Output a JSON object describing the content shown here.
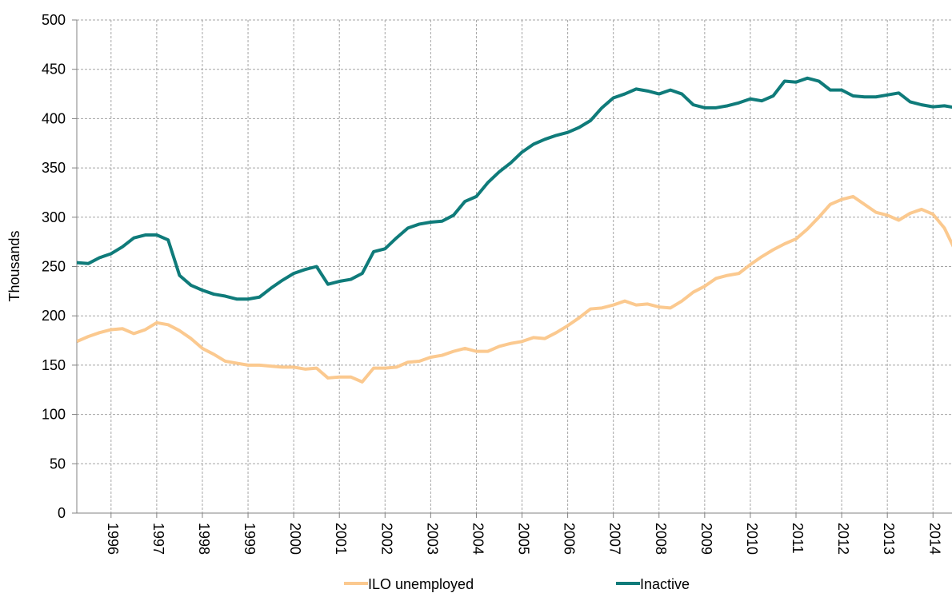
{
  "chart_data": {
    "type": "line",
    "y_label": "Thousands",
    "categories": [
      null,
      null,
      null,
      "1996",
      null,
      null,
      null,
      "1997",
      null,
      null,
      null,
      "1998",
      null,
      null,
      null,
      "1999",
      null,
      null,
      null,
      "2000",
      null,
      null,
      null,
      "2001",
      null,
      null,
      null,
      "2002",
      null,
      null,
      null,
      "2003",
      null,
      null,
      null,
      "2004",
      null,
      null,
      null,
      "2005",
      null,
      null,
      null,
      "2006",
      null,
      null,
      null,
      "2007",
      null,
      null,
      null,
      "2008",
      null,
      null,
      null,
      "2009",
      null,
      null,
      null,
      "2010",
      null,
      null,
      null,
      "2011",
      null,
      null,
      null,
      "2012",
      null,
      null,
      null,
      "2013",
      null,
      null,
      null,
      "2014",
      null,
      null
    ],
    "series": [
      {
        "name": "ILO unemployed",
        "color": "#fbc98f",
        "values": [
          174,
          179,
          183,
          186,
          187,
          182,
          186,
          193,
          191,
          185,
          177,
          167,
          161,
          154,
          152,
          150,
          150,
          149,
          148,
          148,
          146,
          147,
          137,
          138,
          138,
          133,
          147,
          147,
          148,
          153,
          154,
          158,
          160,
          164,
          167,
          164,
          164,
          169,
          172,
          174,
          178,
          177,
          183,
          190,
          198,
          207,
          208,
          211,
          215,
          211,
          212,
          209,
          208,
          215,
          224,
          230,
          238,
          241,
          243,
          252,
          260,
          267,
          273,
          278,
          288,
          300,
          313,
          318,
          321,
          313,
          305,
          302,
          297,
          304,
          308,
          303,
          289,
          265
        ]
      },
      {
        "name": "Inactive",
        "color": "#0f7b7a",
        "values": [
          254,
          253,
          259,
          263,
          270,
          279,
          282,
          282,
          277,
          241,
          231,
          226,
          222,
          220,
          217,
          217,
          219,
          228,
          236,
          243,
          247,
          250,
          232,
          235,
          237,
          243,
          265,
          268,
          279,
          289,
          293,
          295,
          296,
          302,
          316,
          321,
          335,
          346,
          355,
          366,
          374,
          379,
          383,
          386,
          391,
          398,
          411,
          421,
          425,
          430,
          428,
          425,
          429,
          425,
          414,
          411,
          411,
          413,
          416,
          420,
          418,
          423,
          438,
          437,
          441,
          438,
          429,
          429,
          423,
          422,
          422,
          424,
          426,
          417,
          414,
          412,
          413,
          411
        ]
      }
    ],
    "ylim": [
      0,
      500
    ],
    "yticks": [
      0,
      50,
      100,
      150,
      200,
      250,
      300,
      350,
      400,
      450,
      500
    ],
    "grid": true,
    "legend": "bottom"
  }
}
